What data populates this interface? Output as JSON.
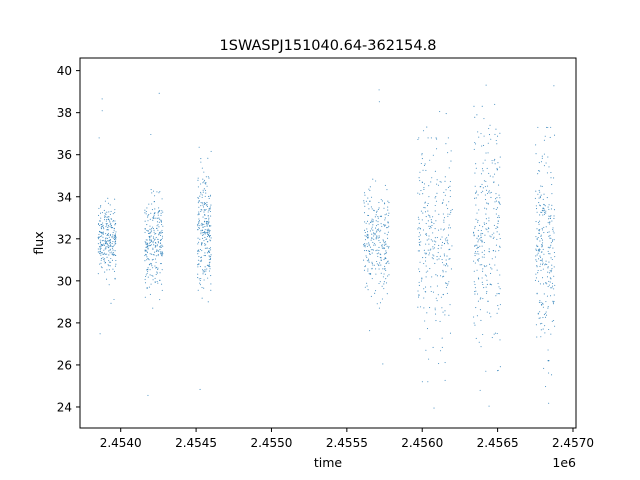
{
  "chart_data": {
    "type": "scatter",
    "title": "1SWASPJ151040.64-362154.8",
    "xlabel": "time",
    "ylabel": "flux",
    "x_offset_label": "1e6",
    "x_scale": 1000000,
    "xlim": [
      2.45373,
      2.45702
    ],
    "ylim": [
      23.0,
      40.6
    ],
    "x_ticks": [
      2.454,
      2.4545,
      2.455,
      2.4555,
      2.456,
      2.4565,
      2.457
    ],
    "x_tick_labels": [
      "2.4540",
      "2.4545",
      "2.4550",
      "2.4555",
      "2.4560",
      "2.4565",
      "2.4570"
    ],
    "y_ticks": [
      24,
      26,
      28,
      30,
      32,
      34,
      36,
      38,
      40
    ],
    "y_tick_labels": [
      "24",
      "26",
      "28",
      "30",
      "32",
      "34",
      "36",
      "38",
      "40"
    ],
    "marker_color": "#1f77b4",
    "grid": false,
    "legend": "none",
    "series": [
      {
        "observing_seasons": [
          {
            "x_range": [
              2.45385,
              2.45397
            ],
            "median": 32.0,
            "typical_range": [
              30.0,
              33.5
            ],
            "extremes": [
              24.4,
              39.1
            ]
          },
          {
            "x_range": [
              2.45416,
              2.45428
            ],
            "median": 31.8,
            "typical_range": [
              29.5,
              33.8
            ],
            "extremes": [
              24.0,
              39.3
            ]
          },
          {
            "x_range": [
              2.45451,
              2.4546
            ],
            "median": 32.3,
            "typical_range": [
              29.8,
              35.6
            ],
            "extremes": [
              24.0,
              37.5
            ]
          },
          {
            "x_range": [
              2.45561,
              2.45578
            ],
            "median": 31.8,
            "typical_range": [
              29.5,
              34.5
            ],
            "extremes": [
              25.5,
              39.8
            ]
          },
          {
            "x_range": [
              2.45597,
              2.4562
            ],
            "median": 32.0,
            "typical_range": [
              26.0,
              36.0
            ],
            "extremes": [
              23.9,
              39.5
            ]
          },
          {
            "x_range": [
              2.45634,
              2.45652
            ],
            "median": 32.0,
            "typical_range": [
              26.5,
              37.5
            ],
            "extremes": [
              23.8,
              39.8
            ]
          },
          {
            "x_range": [
              2.45675,
              2.45688
            ],
            "median": 31.9,
            "typical_range": [
              27.0,
              36.5
            ],
            "extremes": [
              23.9,
              39.7
            ]
          }
        ]
      }
    ]
  }
}
